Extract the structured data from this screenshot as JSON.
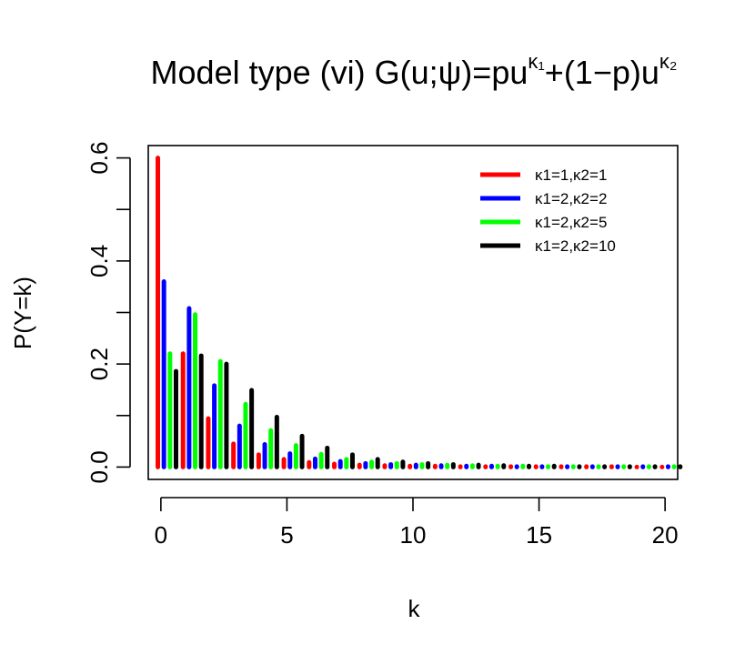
{
  "chart_data": {
    "type": "bar",
    "title": {
      "prefix": "Model type (vi) G(u;ψ)=pu",
      "sup1": "κ₁",
      "middle": "+(1−p)u",
      "sup2": "κ₂"
    },
    "xlabel": "k",
    "ylabel": "P(Y=k)",
    "xlim": [
      -0.5,
      20.5
    ],
    "ylim": [
      0,
      0.6
    ],
    "x_ticks": [
      "0",
      "5",
      "10",
      "15",
      "20"
    ],
    "y_ticks": [
      "0.0",
      "0.2",
      "0.4",
      "0.6"
    ],
    "x": [
      0,
      1,
      2,
      3,
      4,
      5,
      6,
      7,
      8,
      9,
      10,
      11,
      12,
      13,
      14,
      15,
      16,
      17,
      18,
      19,
      20
    ],
    "series": [
      {
        "name": "κ1=1,κ2=1",
        "color": "#ff0000",
        "values": [
          0.6,
          0.22,
          0.094,
          0.045,
          0.024,
          0.015,
          0.009,
          0.006,
          0.004,
          0.003,
          0.002,
          0.002,
          0.001,
          0.001,
          0.001,
          0.001,
          0.001,
          0.001,
          0.001,
          0.0,
          0.0
        ]
      },
      {
        "name": "κ1=2,κ2=2",
        "color": "#0000ff",
        "values": [
          0.36,
          0.308,
          0.158,
          0.08,
          0.044,
          0.026,
          0.016,
          0.011,
          0.007,
          0.005,
          0.004,
          0.003,
          0.002,
          0.002,
          0.001,
          0.001,
          0.001,
          0.001,
          0.001,
          0.001,
          0.001
        ]
      },
      {
        "name": "κ1=2,κ2=5",
        "color": "#00ff00",
        "values": [
          0.22,
          0.296,
          0.205,
          0.122,
          0.071,
          0.042,
          0.025,
          0.015,
          0.01,
          0.007,
          0.005,
          0.004,
          0.003,
          0.002,
          0.002,
          0.001,
          0.001,
          0.001,
          0.001,
          0.001,
          0.001
        ]
      },
      {
        "name": "κ1=2,κ2=10",
        "color": "#000000",
        "values": [
          0.186,
          0.216,
          0.2,
          0.149,
          0.097,
          0.06,
          0.037,
          0.024,
          0.015,
          0.01,
          0.007,
          0.005,
          0.004,
          0.003,
          0.002,
          0.002,
          0.001,
          0.001,
          0.001,
          0.001,
          0.001
        ]
      }
    ],
    "legend_position": "top-right",
    "grid": false
  }
}
